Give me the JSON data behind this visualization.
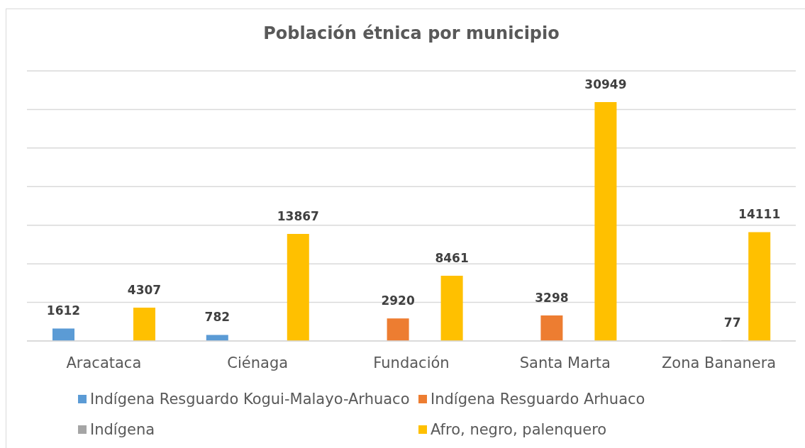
{
  "chart_data": {
    "type": "bar",
    "title": "Población étnica por municipio",
    "categories": [
      "Aracataca",
      "Ciénaga",
      "Fundación",
      "Santa Marta",
      "Zona Bananera"
    ],
    "series": [
      {
        "name": "Indígena Resguardo Kogui-Malayo-Arhuaco",
        "color": "#5b9bd5",
        "values": [
          1612,
          782,
          null,
          null,
          null
        ]
      },
      {
        "name": "Indígena Resguardo Arhuaco",
        "color": "#ed7d31",
        "values": [
          null,
          null,
          2920,
          3298,
          null
        ]
      },
      {
        "name": "Indígena",
        "color": "#a5a5a5",
        "values": [
          null,
          null,
          null,
          null,
          77
        ]
      },
      {
        "name": "Afro, negro, palenquero",
        "color": "#ffc000",
        "values": [
          4307,
          13867,
          8461,
          30949,
          14111
        ]
      }
    ],
    "ylim": [
      0,
      35000
    ],
    "yticks": [
      {
        "value": 0,
        "label": null
      },
      {
        "value": 5000,
        "label": null
      },
      {
        "value": 10000,
        "label": null
      },
      {
        "value": 15000,
        "label": null
      },
      {
        "value": 20000,
        "label": null
      },
      {
        "value": 25000,
        "label": null
      },
      {
        "value": 30000,
        "label": null
      },
      {
        "value": 35000,
        "label": null
      }
    ],
    "grid": "y",
    "legend": "bottom",
    "tick_labels": "x",
    "data_labels": true
  }
}
